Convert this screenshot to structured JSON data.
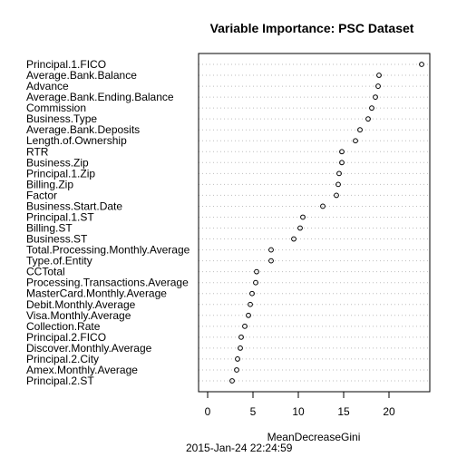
{
  "chart_data": {
    "type": "scatter",
    "style": "dotchart",
    "title": "Variable Importance: PSC Dataset",
    "xlabel": "MeanDecreaseGini",
    "ylabel": "",
    "xlim": [
      -1,
      24.5
    ],
    "xticks": [
      0,
      5,
      10,
      15,
      20
    ],
    "grid": "dotted horizontal lines",
    "categories": [
      "Principal.1.FICO",
      "Average.Bank.Balance",
      "Advance",
      "Average.Bank.Ending.Balance",
      "Commission",
      "Business.Type",
      "Average.Bank.Deposits",
      "Length.of.Ownership",
      "RTR",
      "Business.Zip",
      "Principal.1.Zip",
      "Billing.Zip",
      "Factor",
      "Business.Start.Date",
      "Principal.1.ST",
      "Billing.ST",
      "Business.ST",
      "Total.Processing.Monthly.Average",
      "Type.of.Entity",
      "CCTotal",
      "Processing.Transactions.Average",
      "MasterCard.Monthly.Average",
      "Debit.Monthly.Average",
      "Visa.Monthly.Average",
      "Collection.Rate",
      "Principal.2.FICO",
      "Discover.Monthly.Average",
      "Principal.2.City",
      "Amex.Monthly.Average",
      "Principal.2.ST"
    ],
    "values": [
      23.6,
      18.9,
      18.8,
      18.5,
      18.1,
      17.7,
      16.8,
      16.3,
      14.8,
      14.8,
      14.5,
      14.4,
      14.2,
      12.7,
      10.5,
      10.2,
      9.5,
      7.0,
      7.0,
      5.4,
      5.3,
      4.9,
      4.7,
      4.5,
      4.1,
      3.7,
      3.6,
      3.3,
      3.2,
      2.7
    ]
  },
  "footer": {
    "timestamp": "2015-Jan-24 22:24:59"
  }
}
